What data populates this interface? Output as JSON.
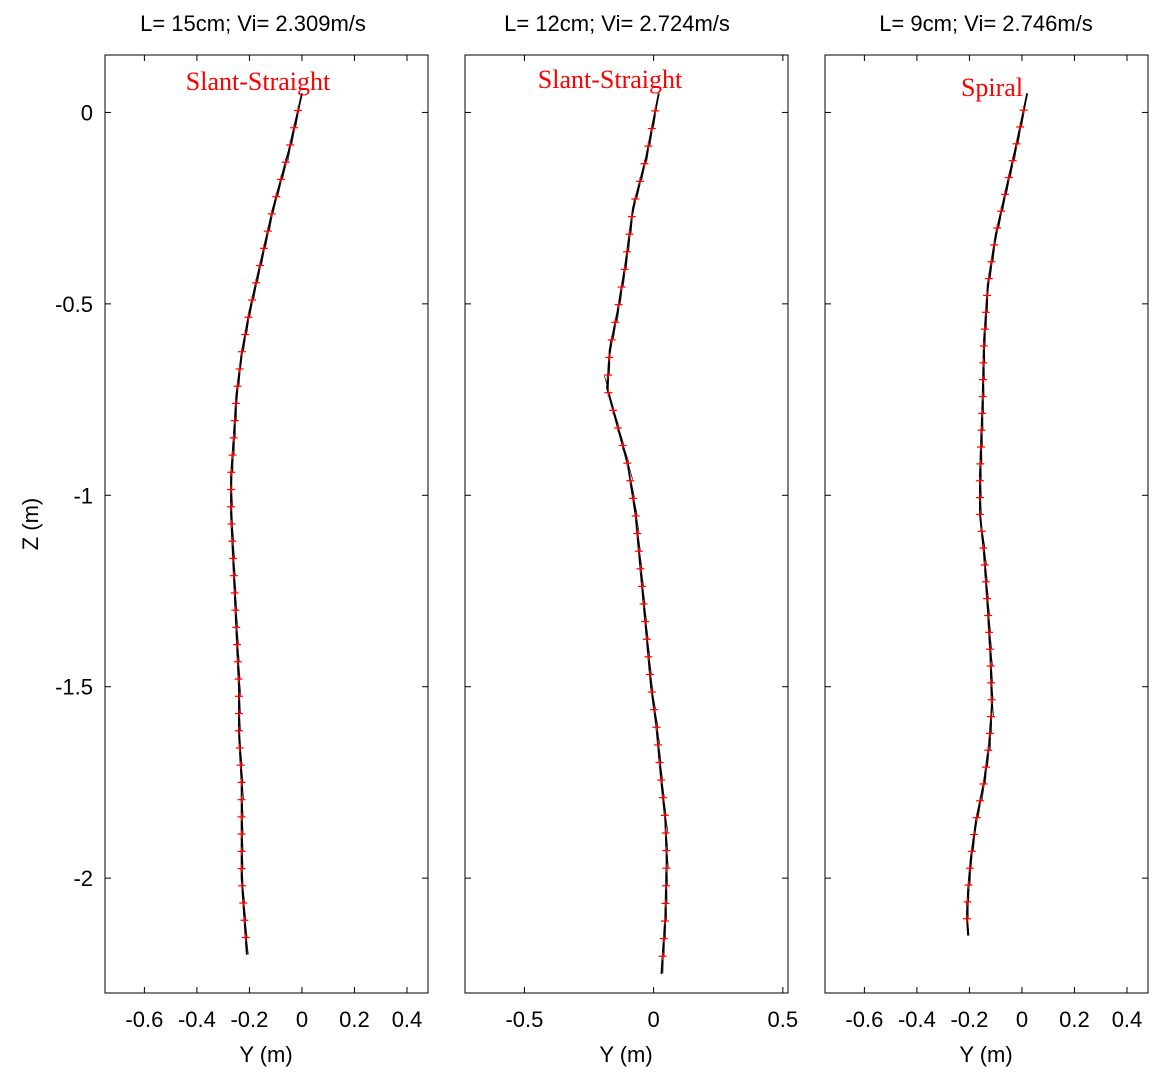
{
  "chart_data": [
    {
      "type": "line",
      "title": "L= 15cm; Vi= 2.309m/s",
      "annotation": "Slant-Straight",
      "xlabel": "Y (m)",
      "ylabel": "Z (m)",
      "xlim": [
        -0.75,
        0.48
      ],
      "ylim": [
        -2.3,
        0.15
      ],
      "xticks": [
        -0.6,
        -0.4,
        -0.2,
        0,
        0.2,
        0.4
      ],
      "xtick_labels": [
        "-0.6",
        "-0.4",
        "-0.2",
        "0",
        "0.2",
        "0.4"
      ],
      "yticks": [
        0,
        -0.5,
        -1,
        -1.5,
        -2
      ],
      "ytick_labels": [
        "0",
        "-0.5",
        "-1",
        "-1.5",
        "-2"
      ],
      "grid": false,
      "series": [
        {
          "x": [
            0.0,
            -0.05,
            -0.11,
            -0.16,
            -0.2,
            -0.23,
            -0.25,
            -0.26,
            -0.27,
            -0.27,
            -0.26,
            -0.25,
            -0.24,
            -0.24,
            -0.23,
            -0.23,
            -0.23,
            -0.22,
            -0.21
          ],
          "y": [
            0.05,
            -0.1,
            -0.25,
            -0.4,
            -0.52,
            -0.63,
            -0.74,
            -0.85,
            -0.95,
            -1.05,
            -1.2,
            -1.35,
            -1.5,
            -1.62,
            -1.75,
            -1.9,
            -2.0,
            -2.1,
            -2.2
          ]
        }
      ]
    },
    {
      "type": "line",
      "title": "L= 12cm; Vi= 2.724m/s",
      "annotation": "Slant-Straight",
      "xlabel": "Y (m)",
      "ylabel": "",
      "xlim": [
        -0.73,
        0.52
      ],
      "ylim": [
        -2.3,
        0.15
      ],
      "xticks": [
        -0.5,
        0,
        0.5
      ],
      "xtick_labels": [
        "-0.5",
        "0",
        "0.5"
      ],
      "yticks": [
        0,
        -0.5,
        -1,
        -1.5,
        -2
      ],
      "ytick_labels": [],
      "grid": false,
      "series": [
        {
          "x": [
            0.02,
            -0.03,
            -0.08,
            -0.11,
            -0.14,
            -0.17,
            -0.18,
            -0.14,
            -0.1,
            -0.07,
            -0.05,
            -0.03,
            -0.01,
            0.01,
            0.03,
            0.045,
            0.05,
            0.045,
            0.03
          ],
          "y": [
            0.05,
            -0.12,
            -0.25,
            -0.4,
            -0.52,
            -0.62,
            -0.72,
            -0.82,
            -0.92,
            -1.05,
            -1.2,
            -1.35,
            -1.5,
            -1.6,
            -1.75,
            -1.85,
            -1.95,
            -2.1,
            -2.25
          ]
        }
      ]
    },
    {
      "type": "line",
      "title": "L= 9cm; Vi= 2.746m/s",
      "annotation": "Spiral",
      "xlabel": "Y (m)",
      "ylabel": "",
      "xlim": [
        -0.75,
        0.48
      ],
      "ylim": [
        -2.3,
        0.15
      ],
      "xticks": [
        -0.6,
        -0.4,
        -0.2,
        0,
        0.2,
        0.4
      ],
      "xtick_labels": [
        "-0.6",
        "-0.4",
        "-0.2",
        "0",
        "0.2",
        "0.4"
      ],
      "yticks": [
        0,
        -0.5,
        -1,
        -1.5,
        -2
      ],
      "ytick_labels": [],
      "grid": false,
      "series": [
        {
          "x": [
            0.02,
            -0.02,
            -0.06,
            -0.1,
            -0.13,
            -0.145,
            -0.15,
            -0.155,
            -0.16,
            -0.16,
            -0.145,
            -0.13,
            -0.12,
            -0.115,
            -0.125,
            -0.145,
            -0.175,
            -0.195,
            -0.205,
            -0.21,
            -0.205
          ],
          "y": [
            0.05,
            -0.08,
            -0.2,
            -0.32,
            -0.45,
            -0.6,
            -0.75,
            -0.85,
            -0.95,
            -1.05,
            -1.15,
            -1.3,
            -1.42,
            -1.55,
            -1.65,
            -1.75,
            -1.85,
            -1.95,
            -2.03,
            -2.1,
            -2.15
          ]
        }
      ]
    }
  ],
  "style": {
    "line_color": "#000000",
    "marker_color": "#ff0000",
    "annotation_color": "#ff0000"
  }
}
